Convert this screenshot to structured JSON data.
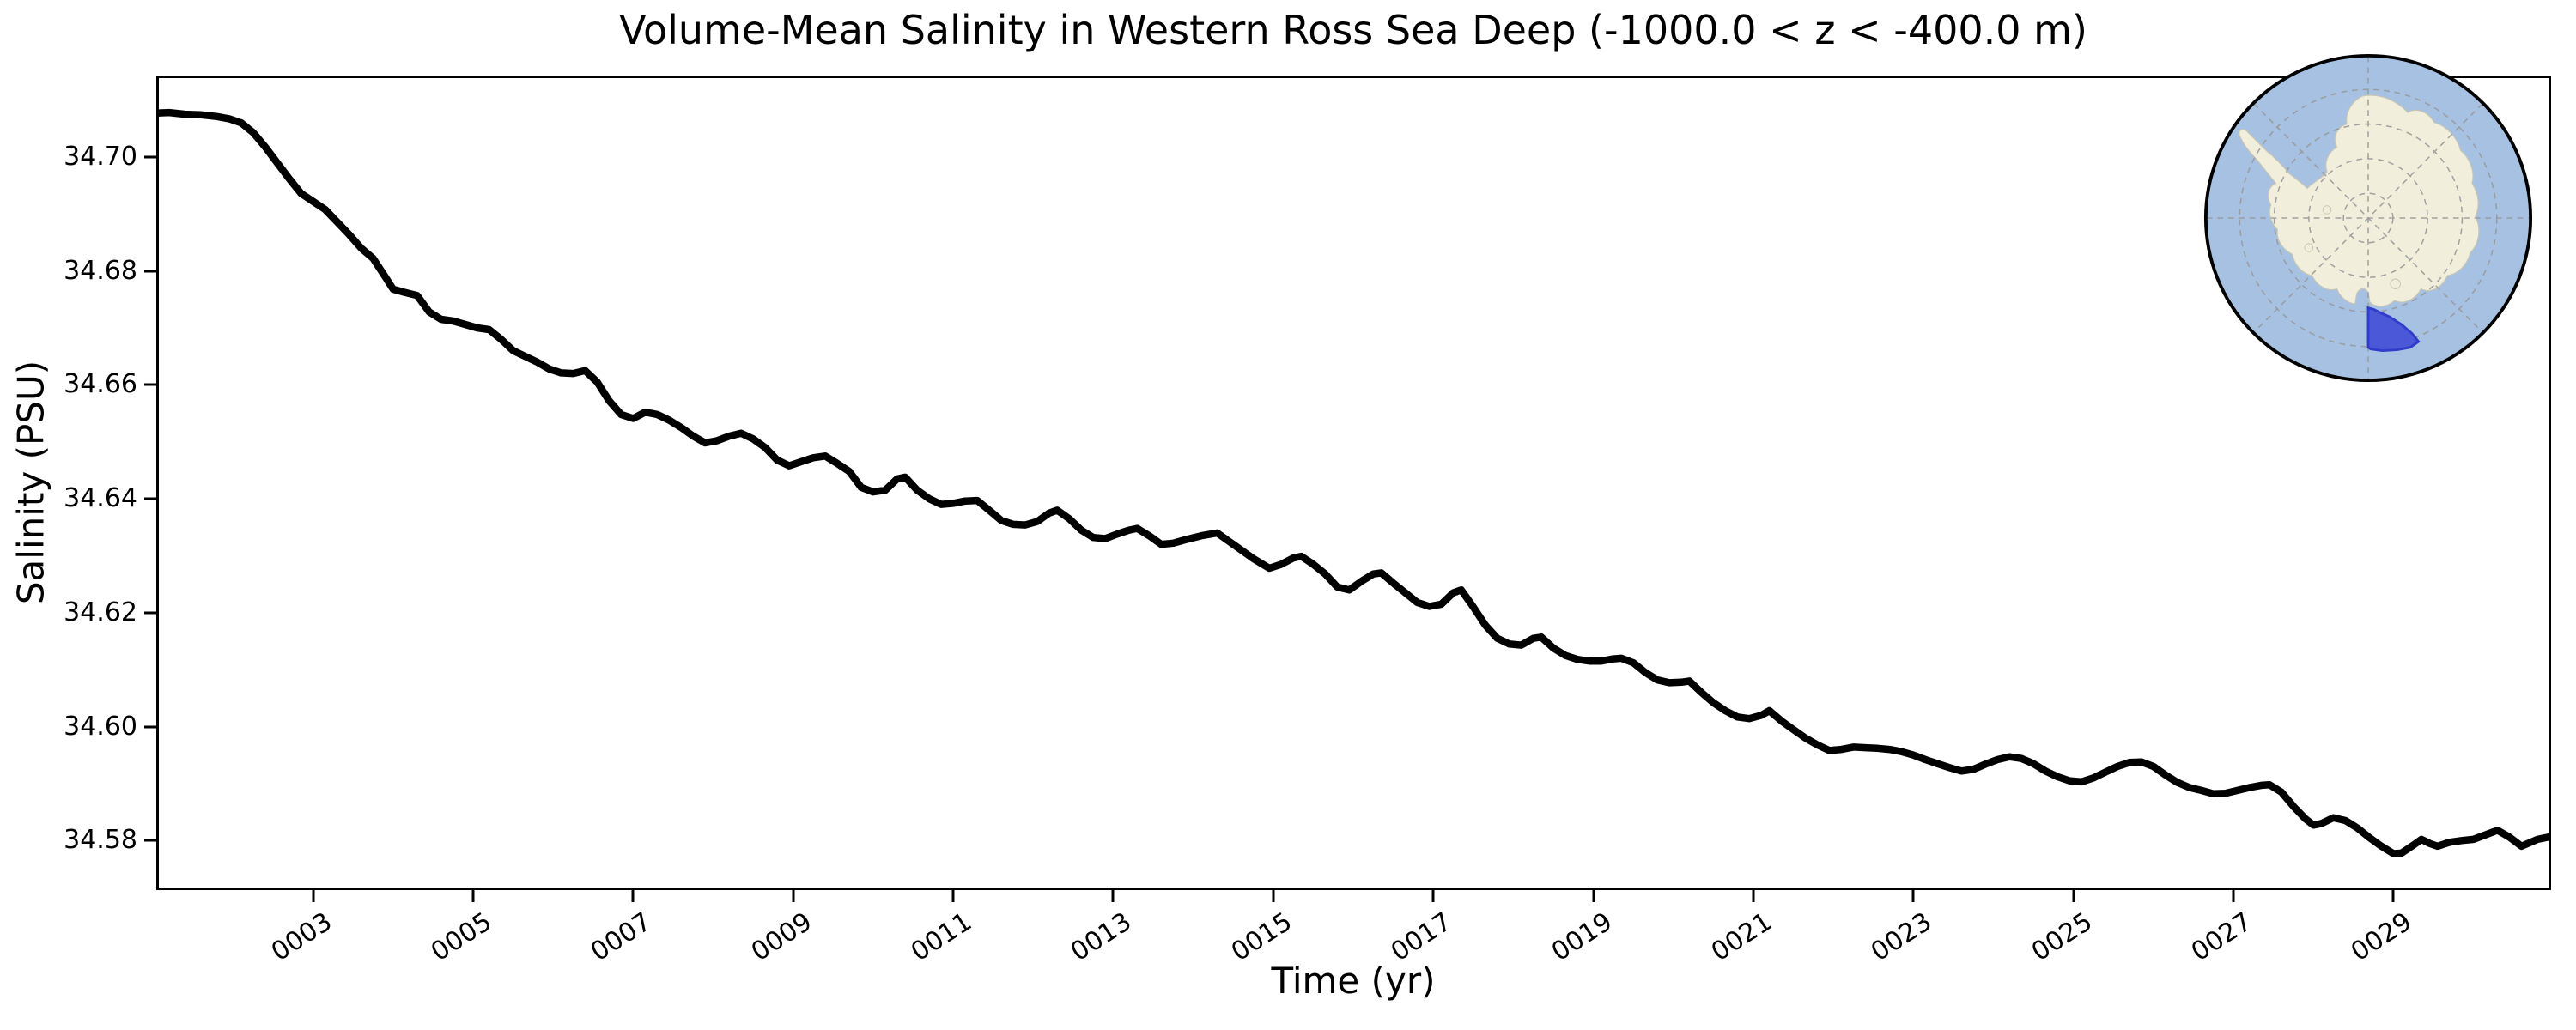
{
  "title": "Volume-Mean Salinity in Western Ross Sea Deep (-1000.0 < z < -400.0 m)",
  "chart_data": {
    "type": "line",
    "title": "Volume-Mean Salinity in Western Ross Sea Deep (-1000.0 < z < -400.0 m)",
    "xlabel": "Time (yr)",
    "ylabel": "Salinity (PSU)",
    "xlim": [
      1.04,
      30.97
    ],
    "ylim": [
      34.5713,
      34.7143
    ],
    "grid": false,
    "legend": "none",
    "line_color": "#000000",
    "line_width": 8.5,
    "x_ticks": {
      "positions": [
        3,
        5,
        7,
        9,
        11,
        13,
        15,
        17,
        19,
        21,
        23,
        25,
        27,
        29
      ],
      "labels": [
        "0003",
        "0005",
        "0007",
        "0009",
        "0011",
        "0013",
        "0015",
        "0017",
        "0019",
        "0021",
        "0023",
        "0025",
        "0027",
        "0029"
      ],
      "rotation_deg": -33
    },
    "y_ticks": {
      "positions": [
        34.7,
        34.68,
        34.66,
        34.64,
        34.62,
        34.6,
        34.58
      ],
      "labels": [
        "34.70",
        "34.68",
        "34.66",
        "34.64",
        "34.62",
        "34.60",
        "34.58"
      ]
    },
    "series": [
      {
        "name": "volume-mean salinity",
        "points": [
          [
            1.05,
            34.7077
          ],
          [
            1.2,
            34.7078
          ],
          [
            1.4,
            34.7075
          ],
          [
            1.6,
            34.7074
          ],
          [
            1.8,
            34.7071
          ],
          [
            1.95,
            34.7067
          ],
          [
            2.1,
            34.706
          ],
          [
            2.25,
            34.7043
          ],
          [
            2.4,
            34.7018
          ],
          [
            2.55,
            34.699
          ],
          [
            2.7,
            34.6962
          ],
          [
            2.85,
            34.6936
          ],
          [
            3.0,
            34.6922
          ],
          [
            3.15,
            34.6908
          ],
          [
            3.3,
            34.6886
          ],
          [
            3.45,
            34.6864
          ],
          [
            3.6,
            34.684
          ],
          [
            3.75,
            34.6822
          ],
          [
            3.9,
            34.679
          ],
          [
            4.0,
            34.6768
          ],
          [
            4.15,
            34.6762
          ],
          [
            4.3,
            34.6757
          ],
          [
            4.45,
            34.6728
          ],
          [
            4.6,
            34.6715
          ],
          [
            4.75,
            34.6712
          ],
          [
            4.9,
            34.6706
          ],
          [
            5.05,
            34.67
          ],
          [
            5.2,
            34.6697
          ],
          [
            5.35,
            34.668
          ],
          [
            5.5,
            34.666
          ],
          [
            5.65,
            34.665
          ],
          [
            5.8,
            34.664
          ],
          [
            5.95,
            34.6628
          ],
          [
            6.1,
            34.6621
          ],
          [
            6.25,
            34.662
          ],
          [
            6.4,
            34.6625
          ],
          [
            6.55,
            34.6605
          ],
          [
            6.7,
            34.6572
          ],
          [
            6.85,
            34.6548
          ],
          [
            7.0,
            34.6541
          ],
          [
            7.15,
            34.6552
          ],
          [
            7.3,
            34.6548
          ],
          [
            7.45,
            34.6538
          ],
          [
            7.6,
            34.6525
          ],
          [
            7.75,
            34.651
          ],
          [
            7.9,
            34.6498
          ],
          [
            8.05,
            34.6502
          ],
          [
            8.2,
            34.651
          ],
          [
            8.35,
            34.6515
          ],
          [
            8.5,
            34.6505
          ],
          [
            8.65,
            34.649
          ],
          [
            8.8,
            34.6468
          ],
          [
            8.95,
            34.6458
          ],
          [
            9.1,
            34.6465
          ],
          [
            9.25,
            34.6472
          ],
          [
            9.4,
            34.6475
          ],
          [
            9.55,
            34.6462
          ],
          [
            9.7,
            34.6448
          ],
          [
            9.85,
            34.642
          ],
          [
            10.0,
            34.6412
          ],
          [
            10.15,
            34.6415
          ],
          [
            10.3,
            34.6435
          ],
          [
            10.4,
            34.6438
          ],
          [
            10.55,
            34.6415
          ],
          [
            10.7,
            34.64
          ],
          [
            10.85,
            34.639
          ],
          [
            11.0,
            34.6392
          ],
          [
            11.15,
            34.6396
          ],
          [
            11.3,
            34.6397
          ],
          [
            11.45,
            34.638
          ],
          [
            11.6,
            34.6362
          ],
          [
            11.75,
            34.6355
          ],
          [
            11.9,
            34.6354
          ],
          [
            12.05,
            34.636
          ],
          [
            12.2,
            34.6375
          ],
          [
            12.3,
            34.638
          ],
          [
            12.45,
            34.6365
          ],
          [
            12.6,
            34.6345
          ],
          [
            12.75,
            34.6332
          ],
          [
            12.9,
            34.633
          ],
          [
            13.05,
            34.6338
          ],
          [
            13.2,
            34.6345
          ],
          [
            13.3,
            34.6348
          ],
          [
            13.45,
            34.6335
          ],
          [
            13.6,
            34.632
          ],
          [
            13.75,
            34.6322
          ],
          [
            13.9,
            34.6328
          ],
          [
            14.1,
            34.6335
          ],
          [
            14.3,
            34.634
          ],
          [
            14.45,
            34.6325
          ],
          [
            14.6,
            34.631
          ],
          [
            14.75,
            34.6295
          ],
          [
            14.95,
            34.6278
          ],
          [
            15.1,
            34.6285
          ],
          [
            15.25,
            34.6296
          ],
          [
            15.35,
            34.6299
          ],
          [
            15.5,
            34.6285
          ],
          [
            15.65,
            34.6268
          ],
          [
            15.8,
            34.6245
          ],
          [
            15.95,
            34.624
          ],
          [
            16.1,
            34.6255
          ],
          [
            16.25,
            34.6268
          ],
          [
            16.35,
            34.627
          ],
          [
            16.5,
            34.6252
          ],
          [
            16.65,
            34.6235
          ],
          [
            16.8,
            34.6218
          ],
          [
            16.95,
            34.6211
          ],
          [
            17.1,
            34.6215
          ],
          [
            17.25,
            34.6235
          ],
          [
            17.35,
            34.624
          ],
          [
            17.5,
            34.621
          ],
          [
            17.65,
            34.6178
          ],
          [
            17.8,
            34.6155
          ],
          [
            17.95,
            34.6145
          ],
          [
            18.1,
            34.6143
          ],
          [
            18.25,
            34.6155
          ],
          [
            18.35,
            34.6157
          ],
          [
            18.5,
            34.6138
          ],
          [
            18.65,
            34.6125
          ],
          [
            18.8,
            34.6118
          ],
          [
            18.95,
            34.6115
          ],
          [
            19.1,
            34.6115
          ],
          [
            19.25,
            34.6119
          ],
          [
            19.35,
            34.612
          ],
          [
            19.5,
            34.6112
          ],
          [
            19.65,
            34.6095
          ],
          [
            19.8,
            34.6082
          ],
          [
            19.95,
            34.6077
          ],
          [
            20.1,
            34.6078
          ],
          [
            20.2,
            34.608
          ],
          [
            20.35,
            34.606
          ],
          [
            20.5,
            34.6042
          ],
          [
            20.65,
            34.6028
          ],
          [
            20.8,
            34.6017
          ],
          [
            20.95,
            34.6014
          ],
          [
            21.1,
            34.602
          ],
          [
            21.2,
            34.6028
          ],
          [
            21.35,
            34.601
          ],
          [
            21.5,
            34.5995
          ],
          [
            21.65,
            34.598
          ],
          [
            21.8,
            34.5968
          ],
          [
            21.95,
            34.5958
          ],
          [
            22.1,
            34.596
          ],
          [
            22.25,
            34.5964
          ],
          [
            22.4,
            34.5963
          ],
          [
            22.55,
            34.5962
          ],
          [
            22.7,
            34.596
          ],
          [
            22.85,
            34.5956
          ],
          [
            23.0,
            34.595
          ],
          [
            23.15,
            34.5942
          ],
          [
            23.3,
            34.5935
          ],
          [
            23.45,
            34.5928
          ],
          [
            23.6,
            34.5922
          ],
          [
            23.75,
            34.5925
          ],
          [
            23.9,
            34.5934
          ],
          [
            24.05,
            34.5942
          ],
          [
            24.2,
            34.5947
          ],
          [
            24.35,
            34.5944
          ],
          [
            24.5,
            34.5935
          ],
          [
            24.65,
            34.5922
          ],
          [
            24.8,
            34.5912
          ],
          [
            24.95,
            34.5905
          ],
          [
            25.1,
            34.5903
          ],
          [
            25.25,
            34.591
          ],
          [
            25.4,
            34.592
          ],
          [
            25.55,
            34.593
          ],
          [
            25.7,
            34.5937
          ],
          [
            25.85,
            34.5938
          ],
          [
            26.0,
            34.593
          ],
          [
            26.15,
            34.5915
          ],
          [
            26.3,
            34.5902
          ],
          [
            26.45,
            34.5893
          ],
          [
            26.6,
            34.5888
          ],
          [
            26.75,
            34.5882
          ],
          [
            26.9,
            34.5883
          ],
          [
            27.05,
            34.5888
          ],
          [
            27.2,
            34.5893
          ],
          [
            27.35,
            34.5897
          ],
          [
            27.45,
            34.5898
          ],
          [
            27.6,
            34.5885
          ],
          [
            27.75,
            34.586
          ],
          [
            27.9,
            34.5838
          ],
          [
            28.0,
            34.5827
          ],
          [
            28.1,
            34.583
          ],
          [
            28.25,
            34.584
          ],
          [
            28.4,
            34.5835
          ],
          [
            28.55,
            34.5822
          ],
          [
            28.7,
            34.5805
          ],
          [
            28.85,
            34.579
          ],
          [
            29.0,
            34.5777
          ],
          [
            29.1,
            34.5778
          ],
          [
            29.25,
            34.5792
          ],
          [
            29.35,
            34.5802
          ],
          [
            29.45,
            34.5795
          ],
          [
            29.55,
            34.579
          ],
          [
            29.7,
            34.5797
          ],
          [
            29.85,
            34.58
          ],
          [
            30.0,
            34.5802
          ],
          [
            30.15,
            34.581
          ],
          [
            30.3,
            34.5818
          ],
          [
            30.45,
            34.5806
          ],
          [
            30.6,
            34.579
          ],
          [
            30.8,
            34.5802
          ],
          [
            30.97,
            34.5807
          ]
        ]
      }
    ]
  },
  "inset_map": {
    "type": "south-polar-stereographic-locator",
    "ocean_color": "#a6c1e2",
    "land_color": "#f1eedc",
    "coast_color": "#c9c6b2",
    "graticule_color": "#999999",
    "rim_color": "#000000",
    "region_fill": "#4450d8",
    "region_edge": "#2832c8"
  }
}
